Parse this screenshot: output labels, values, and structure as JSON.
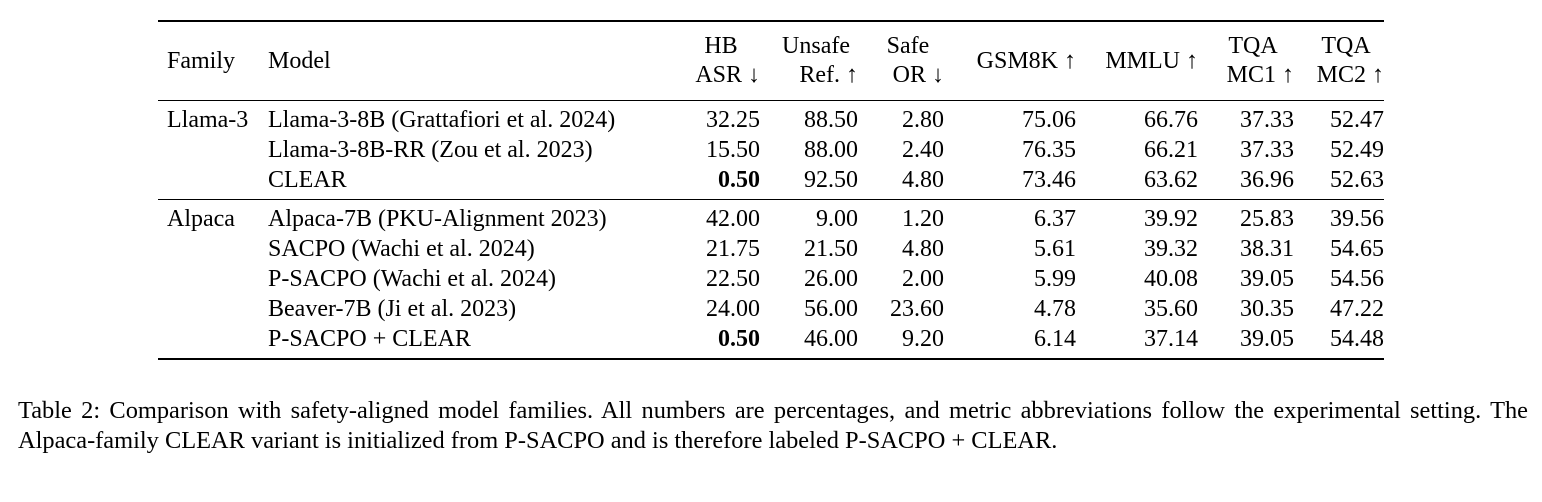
{
  "table": {
    "headers": [
      {
        "line1": "Family",
        "line2": ""
      },
      {
        "line1": "Model",
        "line2": ""
      },
      {
        "line1": "HB",
        "line2": "ASR ↓"
      },
      {
        "line1": "Unsafe",
        "line2": "Ref. ↑"
      },
      {
        "line1": "Safe",
        "line2": "OR ↓"
      },
      {
        "line1": "GSM8K ↑",
        "line2": ""
      },
      {
        "line1": "MMLU ↑",
        "line2": ""
      },
      {
        "line1": "TQA",
        "line2": "MC1 ↑"
      },
      {
        "line1": "TQA",
        "line2": "MC2 ↑"
      }
    ],
    "groups": [
      {
        "family": "Llama-3",
        "rows": [
          {
            "model": "Llama-3-8B (Grattafiori et al. 2024)",
            "hb_asr": "32.25",
            "unsafe_ref": "88.50",
            "safe_or": "2.80",
            "gsm8k": "75.06",
            "mmlu": "66.76",
            "tqa_mc1": "37.33",
            "tqa_mc2": "52.47",
            "bold_hb": false
          },
          {
            "model": "Llama-3-8B-RR (Zou et al. 2023)",
            "hb_asr": "15.50",
            "unsafe_ref": "88.00",
            "safe_or": "2.40",
            "gsm8k": "76.35",
            "mmlu": "66.21",
            "tqa_mc1": "37.33",
            "tqa_mc2": "52.49",
            "bold_hb": false
          },
          {
            "model": "CLEAR",
            "hb_asr": "0.50",
            "unsafe_ref": "92.50",
            "safe_or": "4.80",
            "gsm8k": "73.46",
            "mmlu": "63.62",
            "tqa_mc1": "36.96",
            "tqa_mc2": "52.63",
            "bold_hb": true
          }
        ]
      },
      {
        "family": "Alpaca",
        "rows": [
          {
            "model": "Alpaca-7B (PKU-Alignment 2023)",
            "hb_asr": "42.00",
            "unsafe_ref": "9.00",
            "safe_or": "1.20",
            "gsm8k": "6.37",
            "mmlu": "39.92",
            "tqa_mc1": "25.83",
            "tqa_mc2": "39.56",
            "bold_hb": false
          },
          {
            "model": "SACPO (Wachi et al. 2024)",
            "hb_asr": "21.75",
            "unsafe_ref": "21.50",
            "safe_or": "4.80",
            "gsm8k": "5.61",
            "mmlu": "39.32",
            "tqa_mc1": "38.31",
            "tqa_mc2": "54.65",
            "bold_hb": false
          },
          {
            "model": "P-SACPO (Wachi et al. 2024)",
            "hb_asr": "22.50",
            "unsafe_ref": "26.00",
            "safe_or": "2.00",
            "gsm8k": "5.99",
            "mmlu": "40.08",
            "tqa_mc1": "39.05",
            "tqa_mc2": "54.56",
            "bold_hb": false
          },
          {
            "model": "Beaver-7B (Ji et al. 2023)",
            "hb_asr": "24.00",
            "unsafe_ref": "56.00",
            "safe_or": "23.60",
            "gsm8k": "4.78",
            "mmlu": "35.60",
            "tqa_mc1": "30.35",
            "tqa_mc2": "47.22",
            "bold_hb": false
          },
          {
            "model": "P-SACPO + CLEAR",
            "hb_asr": "0.50",
            "unsafe_ref": "46.00",
            "safe_or": "9.20",
            "gsm8k": "6.14",
            "mmlu": "37.14",
            "tqa_mc1": "39.05",
            "tqa_mc2": "54.48",
            "bold_hb": true
          }
        ]
      }
    ]
  },
  "caption": "Table 2: Comparison with safety-aligned model families. All numbers are percentages, and metric abbreviations follow the experimental setting. The Alpaca-family CLEAR variant is initialized from P-SACPO and is therefore labeled P-SACPO + CLEAR."
}
